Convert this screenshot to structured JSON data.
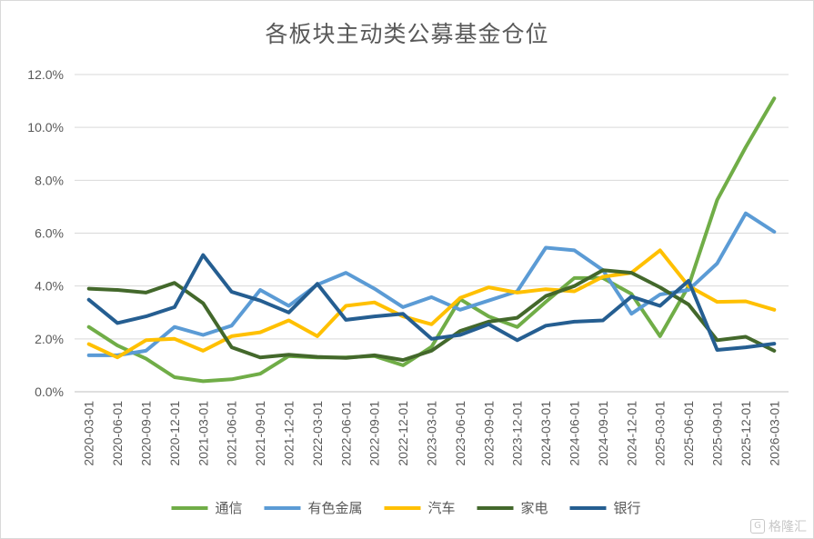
{
  "chart_data": {
    "type": "line",
    "title": "各板块主动类公募基金仓位",
    "xlabel": "",
    "ylabel": "",
    "ylim": [
      0,
      12
    ],
    "yticks": [
      "0.0%",
      "2.0%",
      "4.0%",
      "6.0%",
      "8.0%",
      "10.0%",
      "12.0%"
    ],
    "grid": "horizontal",
    "legend_position": "bottom",
    "x": [
      "2020-03-01",
      "2020-06-01",
      "2020-09-01",
      "2020-12-01",
      "2021-03-01",
      "2021-06-01",
      "2021-09-01",
      "2021-12-01",
      "2022-03-01",
      "2022-06-01",
      "2022-09-01",
      "2022-12-01",
      "2023-03-01",
      "2023-06-01",
      "2023-09-01",
      "2023-12-01",
      "2024-03-01",
      "2024-06-01",
      "2024-09-01",
      "2024-12-01",
      "2025-03-01",
      "2025-06-01",
      "2025-09-01",
      "2025-12-01",
      "2026-03-01"
    ],
    "series": [
      {
        "name": "通信",
        "color": "#70ad47",
        "values": [
          2.45,
          1.75,
          1.25,
          0.55,
          0.4,
          0.47,
          0.68,
          1.35,
          1.3,
          1.3,
          1.35,
          1.0,
          1.7,
          3.5,
          2.85,
          2.45,
          3.4,
          4.3,
          4.3,
          3.7,
          2.1,
          4.0,
          7.25,
          9.25,
          11.1
        ]
      },
      {
        "name": "有色金属",
        "color": "#5b9bd5",
        "values": [
          1.38,
          1.38,
          1.55,
          2.45,
          2.15,
          2.5,
          3.85,
          3.25,
          4.05,
          4.5,
          3.9,
          3.2,
          3.58,
          3.1,
          3.45,
          3.8,
          5.45,
          5.35,
          4.6,
          2.95,
          3.68,
          3.85,
          4.85,
          6.75,
          6.05
        ]
      },
      {
        "name": "汽车",
        "color": "#ffc000",
        "values": [
          1.8,
          1.3,
          1.95,
          2.0,
          1.55,
          2.1,
          2.25,
          2.7,
          2.1,
          3.25,
          3.38,
          2.85,
          2.55,
          3.55,
          3.95,
          3.75,
          3.88,
          3.8,
          4.35,
          4.5,
          5.35,
          4.0,
          3.4,
          3.42,
          3.1
        ]
      },
      {
        "name": "家电",
        "color": "#43682b",
        "values": [
          3.9,
          3.85,
          3.75,
          4.12,
          3.35,
          1.68,
          1.3,
          1.4,
          1.32,
          1.28,
          1.38,
          1.2,
          1.55,
          2.3,
          2.65,
          2.8,
          3.62,
          4.0,
          4.6,
          4.5,
          3.95,
          3.3,
          1.95,
          2.08,
          1.55
        ]
      },
      {
        "name": "银行",
        "color": "#255e91",
        "values": [
          3.48,
          2.6,
          2.85,
          3.2,
          5.17,
          3.78,
          3.45,
          3.0,
          4.08,
          2.72,
          2.85,
          2.95,
          2.0,
          2.15,
          2.55,
          1.95,
          2.5,
          2.65,
          2.7,
          3.6,
          3.25,
          4.2,
          1.58,
          1.68,
          1.82
        ]
      }
    ]
  },
  "watermark": {
    "text": "格隆汇"
  }
}
